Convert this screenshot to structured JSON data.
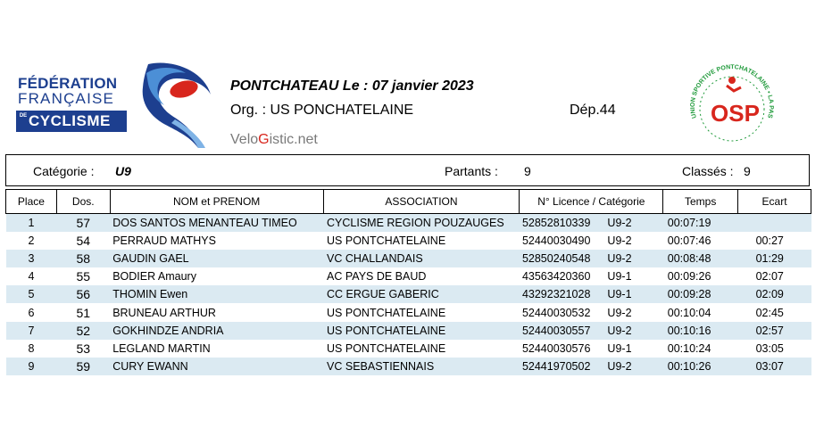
{
  "logo": {
    "line1": "FÉDÉRATION",
    "line2": "FRANÇAISE",
    "de": "DE",
    "line3": "CYCLISME"
  },
  "osp_logo": {
    "ring_text": "UNION SPORTIVE PONTCHATELAINE  •  LA PASSION DU CYCLISME DEPUIS 1995",
    "letters": "OSP",
    "colors": {
      "ring": "#1f9a3a",
      "letters": "#d8261d"
    }
  },
  "header": {
    "event_title": "PONTCHATEAU  Le :  07 janvier 2023",
    "org": "Org. :  US PONCHATELAINE",
    "dep": "Dép.44",
    "velogistic_pre": "Velo",
    "velogistic_g": "G",
    "velogistic_post": "istic.net"
  },
  "info": {
    "category_label": "Catégorie :",
    "category_value": "U9",
    "partants_label": "Partants :",
    "partants_value": "9",
    "classes_label": "Classés :",
    "classes_value": "9"
  },
  "table": {
    "columns": [
      "Place",
      "Dos.",
      "NOM et PRENOM",
      "ASSOCIATION",
      "N° Licence / Catégorie",
      "Temps",
      "Ecart"
    ],
    "rows": [
      {
        "place": "1",
        "dos": "57",
        "nom": "DOS SANTOS MENANTEAU   TIMEO",
        "assoc": "CYCLISME REGION POUZAUGES",
        "licence": "52852810339",
        "cat": "U9-2",
        "temps": "00:07:19",
        "ecart": ""
      },
      {
        "place": "2",
        "dos": "54",
        "nom": "PERRAUD   MATHYS",
        "assoc": "US PONTCHATELAINE",
        "licence": "52440030490",
        "cat": "U9-2",
        "temps": "00:07:46",
        "ecart": "00:27"
      },
      {
        "place": "3",
        "dos": "58",
        "nom": "GAUDIN   GAEL",
        "assoc": "VC CHALLANDAIS",
        "licence": "52850240548",
        "cat": "U9-2",
        "temps": "00:08:48",
        "ecart": "01:29"
      },
      {
        "place": "4",
        "dos": "55",
        "nom": "BODIER   Amaury",
        "assoc": "AC PAYS DE BAUD",
        "licence": "43563420360",
        "cat": "U9-1",
        "temps": "00:09:26",
        "ecart": "02:07"
      },
      {
        "place": "5",
        "dos": "56",
        "nom": "THOMIN   Ewen",
        "assoc": "CC ERGUE GABERIC",
        "licence": "43292321028",
        "cat": "U9-1",
        "temps": "00:09:28",
        "ecart": "02:09"
      },
      {
        "place": "6",
        "dos": "51",
        "nom": "BRUNEAU   ARTHUR",
        "assoc": "US PONTCHATELAINE",
        "licence": "52440030532",
        "cat": "U9-2",
        "temps": "00:10:04",
        "ecart": "02:45"
      },
      {
        "place": "7",
        "dos": "52",
        "nom": "GOKHINDZE   ANDRIA",
        "assoc": "US PONTCHATELAINE",
        "licence": "52440030557",
        "cat": "U9-2",
        "temps": "00:10:16",
        "ecart": "02:57"
      },
      {
        "place": "8",
        "dos": "53",
        "nom": "LEGLAND   MARTIN",
        "assoc": "US PONTCHATELAINE",
        "licence": "52440030576",
        "cat": "U9-1",
        "temps": "00:10:24",
        "ecart": "03:05"
      },
      {
        "place": "9",
        "dos": "59",
        "nom": "CURY   EWANN",
        "assoc": "VC SEBASTIENNAIS",
        "licence": "52441970502",
        "cat": "U9-2",
        "temps": "00:10:26",
        "ecart": "03:07"
      }
    ]
  }
}
